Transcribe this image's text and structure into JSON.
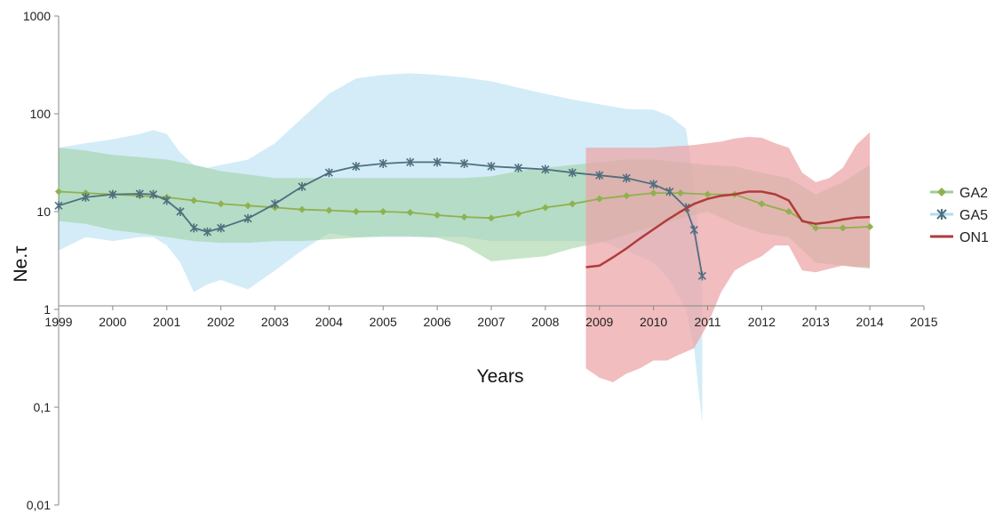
{
  "chart_data": {
    "type": "line",
    "title": "",
    "xlabel": "Years",
    "ylabel": "Ne.τ",
    "x_scale": "linear",
    "y_scale": "log",
    "xlim": [
      1999,
      2015
    ],
    "ylim": [
      0.01,
      1000
    ],
    "x_ticks": [
      "1999",
      "2000",
      "2001",
      "2002",
      "2003",
      "2004",
      "2005",
      "2006",
      "2007",
      "2008",
      "2009",
      "2010",
      "2011",
      "2012",
      "2013",
      "2014",
      "2015"
    ],
    "y_ticks": [
      "0,01",
      "0,1",
      "1",
      "10",
      "100",
      "1000"
    ],
    "y_tick_values": [
      0.01,
      0.1,
      1,
      10,
      100,
      1000
    ],
    "grid": false,
    "legend_position": "right",
    "series": [
      {
        "name": "GA2",
        "color": "#8fb14f",
        "band_color": "#9ccf9c",
        "band_color_2": "#d3d88a",
        "marker": "diamond",
        "x": [
          1999.0,
          1999.5,
          2000.0,
          2000.5,
          2001.0,
          2001.5,
          2002.0,
          2002.5,
          2003.0,
          2003.5,
          2004.0,
          2004.5,
          2005.0,
          2005.5,
          2006.0,
          2006.5,
          2007.0,
          2007.5,
          2008.0,
          2008.5,
          2009.0,
          2009.5,
          2010.0,
          2010.5,
          2011.0,
          2011.5,
          2012.0,
          2012.5,
          2013.0,
          2013.5,
          2014.0
        ],
        "values": [
          16,
          15.5,
          15,
          14.5,
          14,
          13,
          12,
          11.5,
          11,
          10.5,
          10.3,
          10,
          10,
          9.8,
          9.2,
          8.8,
          8.6,
          9.5,
          11,
          12,
          13.5,
          14.5,
          15.5,
          15.5,
          15,
          15,
          12,
          10,
          6.8,
          6.8,
          7
        ],
        "upper": [
          45,
          42,
          38,
          36,
          34,
          30,
          26,
          24,
          22,
          22,
          22,
          22,
          22,
          22,
          22,
          22,
          23,
          26,
          28,
          30,
          32,
          34,
          34,
          32,
          30,
          29,
          25,
          22,
          15,
          20,
          30
        ],
        "lower": [
          8,
          7.5,
          6.5,
          6,
          5.5,
          5,
          4.8,
          4.8,
          5,
          5,
          5.2,
          5.4,
          5.6,
          5.6,
          5.4,
          4.5,
          3.1,
          3.3,
          3.5,
          4.2,
          4.8,
          5.8,
          7,
          8.5,
          10,
          7.5,
          6,
          5.5,
          3,
          2.8,
          2.6
        ]
      },
      {
        "name": "GA5",
        "color": "#4f6f7e",
        "band_color": "#aedcf3",
        "marker": "star",
        "x": [
          1999.0,
          1999.5,
          2000.0,
          2000.5,
          2000.75,
          2001.0,
          2001.25,
          2001.5,
          2001.75,
          2002.0,
          2002.5,
          2003.0,
          2003.5,
          2004.0,
          2004.5,
          2005.0,
          2005.5,
          2006.0,
          2006.5,
          2007.0,
          2007.5,
          2008.0,
          2008.5,
          2009.0,
          2009.5,
          2010.0,
          2010.3,
          2010.6,
          2010.75,
          2010.9
        ],
        "values": [
          11.5,
          14,
          15,
          15.2,
          15,
          13,
          10,
          6.8,
          6.2,
          6.8,
          8.5,
          12,
          18,
          25,
          29,
          31,
          32,
          32,
          31,
          29,
          28,
          27,
          25,
          23.5,
          22,
          19,
          16,
          11,
          6.5,
          2.2
        ],
        "upper": [
          45,
          50,
          55,
          62,
          68,
          62,
          40,
          30,
          28,
          30,
          34,
          50,
          90,
          160,
          230,
          250,
          260,
          250,
          235,
          215,
          185,
          160,
          140,
          125,
          112,
          110,
          95,
          70,
          20,
          2
        ],
        "lower": [
          4,
          5.5,
          5,
          5.5,
          5.5,
          4.5,
          3,
          1.5,
          1.8,
          2,
          1.6,
          2.5,
          4,
          6,
          5.5,
          5.5,
          5.5,
          5.5,
          5.5,
          5,
          5,
          5,
          5,
          5,
          4,
          3,
          2,
          1,
          0.4,
          0.07
        ]
      },
      {
        "name": "ON1",
        "color": "#b13b3b",
        "band_color": "#eba4a6",
        "marker": "none",
        "x": [
          2008.75,
          2009.0,
          2009.25,
          2009.5,
          2009.75,
          2010.0,
          2010.25,
          2010.5,
          2010.75,
          2011.0,
          2011.25,
          2011.5,
          2011.75,
          2012.0,
          2012.25,
          2012.5,
          2012.75,
          2013.0,
          2013.25,
          2013.5,
          2013.75,
          2014.0
        ],
        "values": [
          2.7,
          2.8,
          3.4,
          4.2,
          5.3,
          6.6,
          8.2,
          10,
          12,
          13.5,
          14.5,
          15,
          16,
          16,
          15,
          13,
          8,
          7.5,
          7.8,
          8.3,
          8.7,
          8.8
        ],
        "upper": [
          45,
          45,
          45,
          45,
          45,
          45,
          46,
          47,
          48,
          50,
          52,
          56,
          58,
          57,
          50,
          45,
          25,
          20,
          22,
          28,
          48,
          65
        ],
        "lower": [
          0.25,
          0.2,
          0.18,
          0.22,
          0.25,
          0.3,
          0.3,
          0.35,
          0.4,
          0.7,
          1.5,
          2.5,
          3,
          3.5,
          4.5,
          4.5,
          2.5,
          2.4,
          2.6,
          2.8,
          2.7,
          2.7
        ]
      }
    ]
  }
}
